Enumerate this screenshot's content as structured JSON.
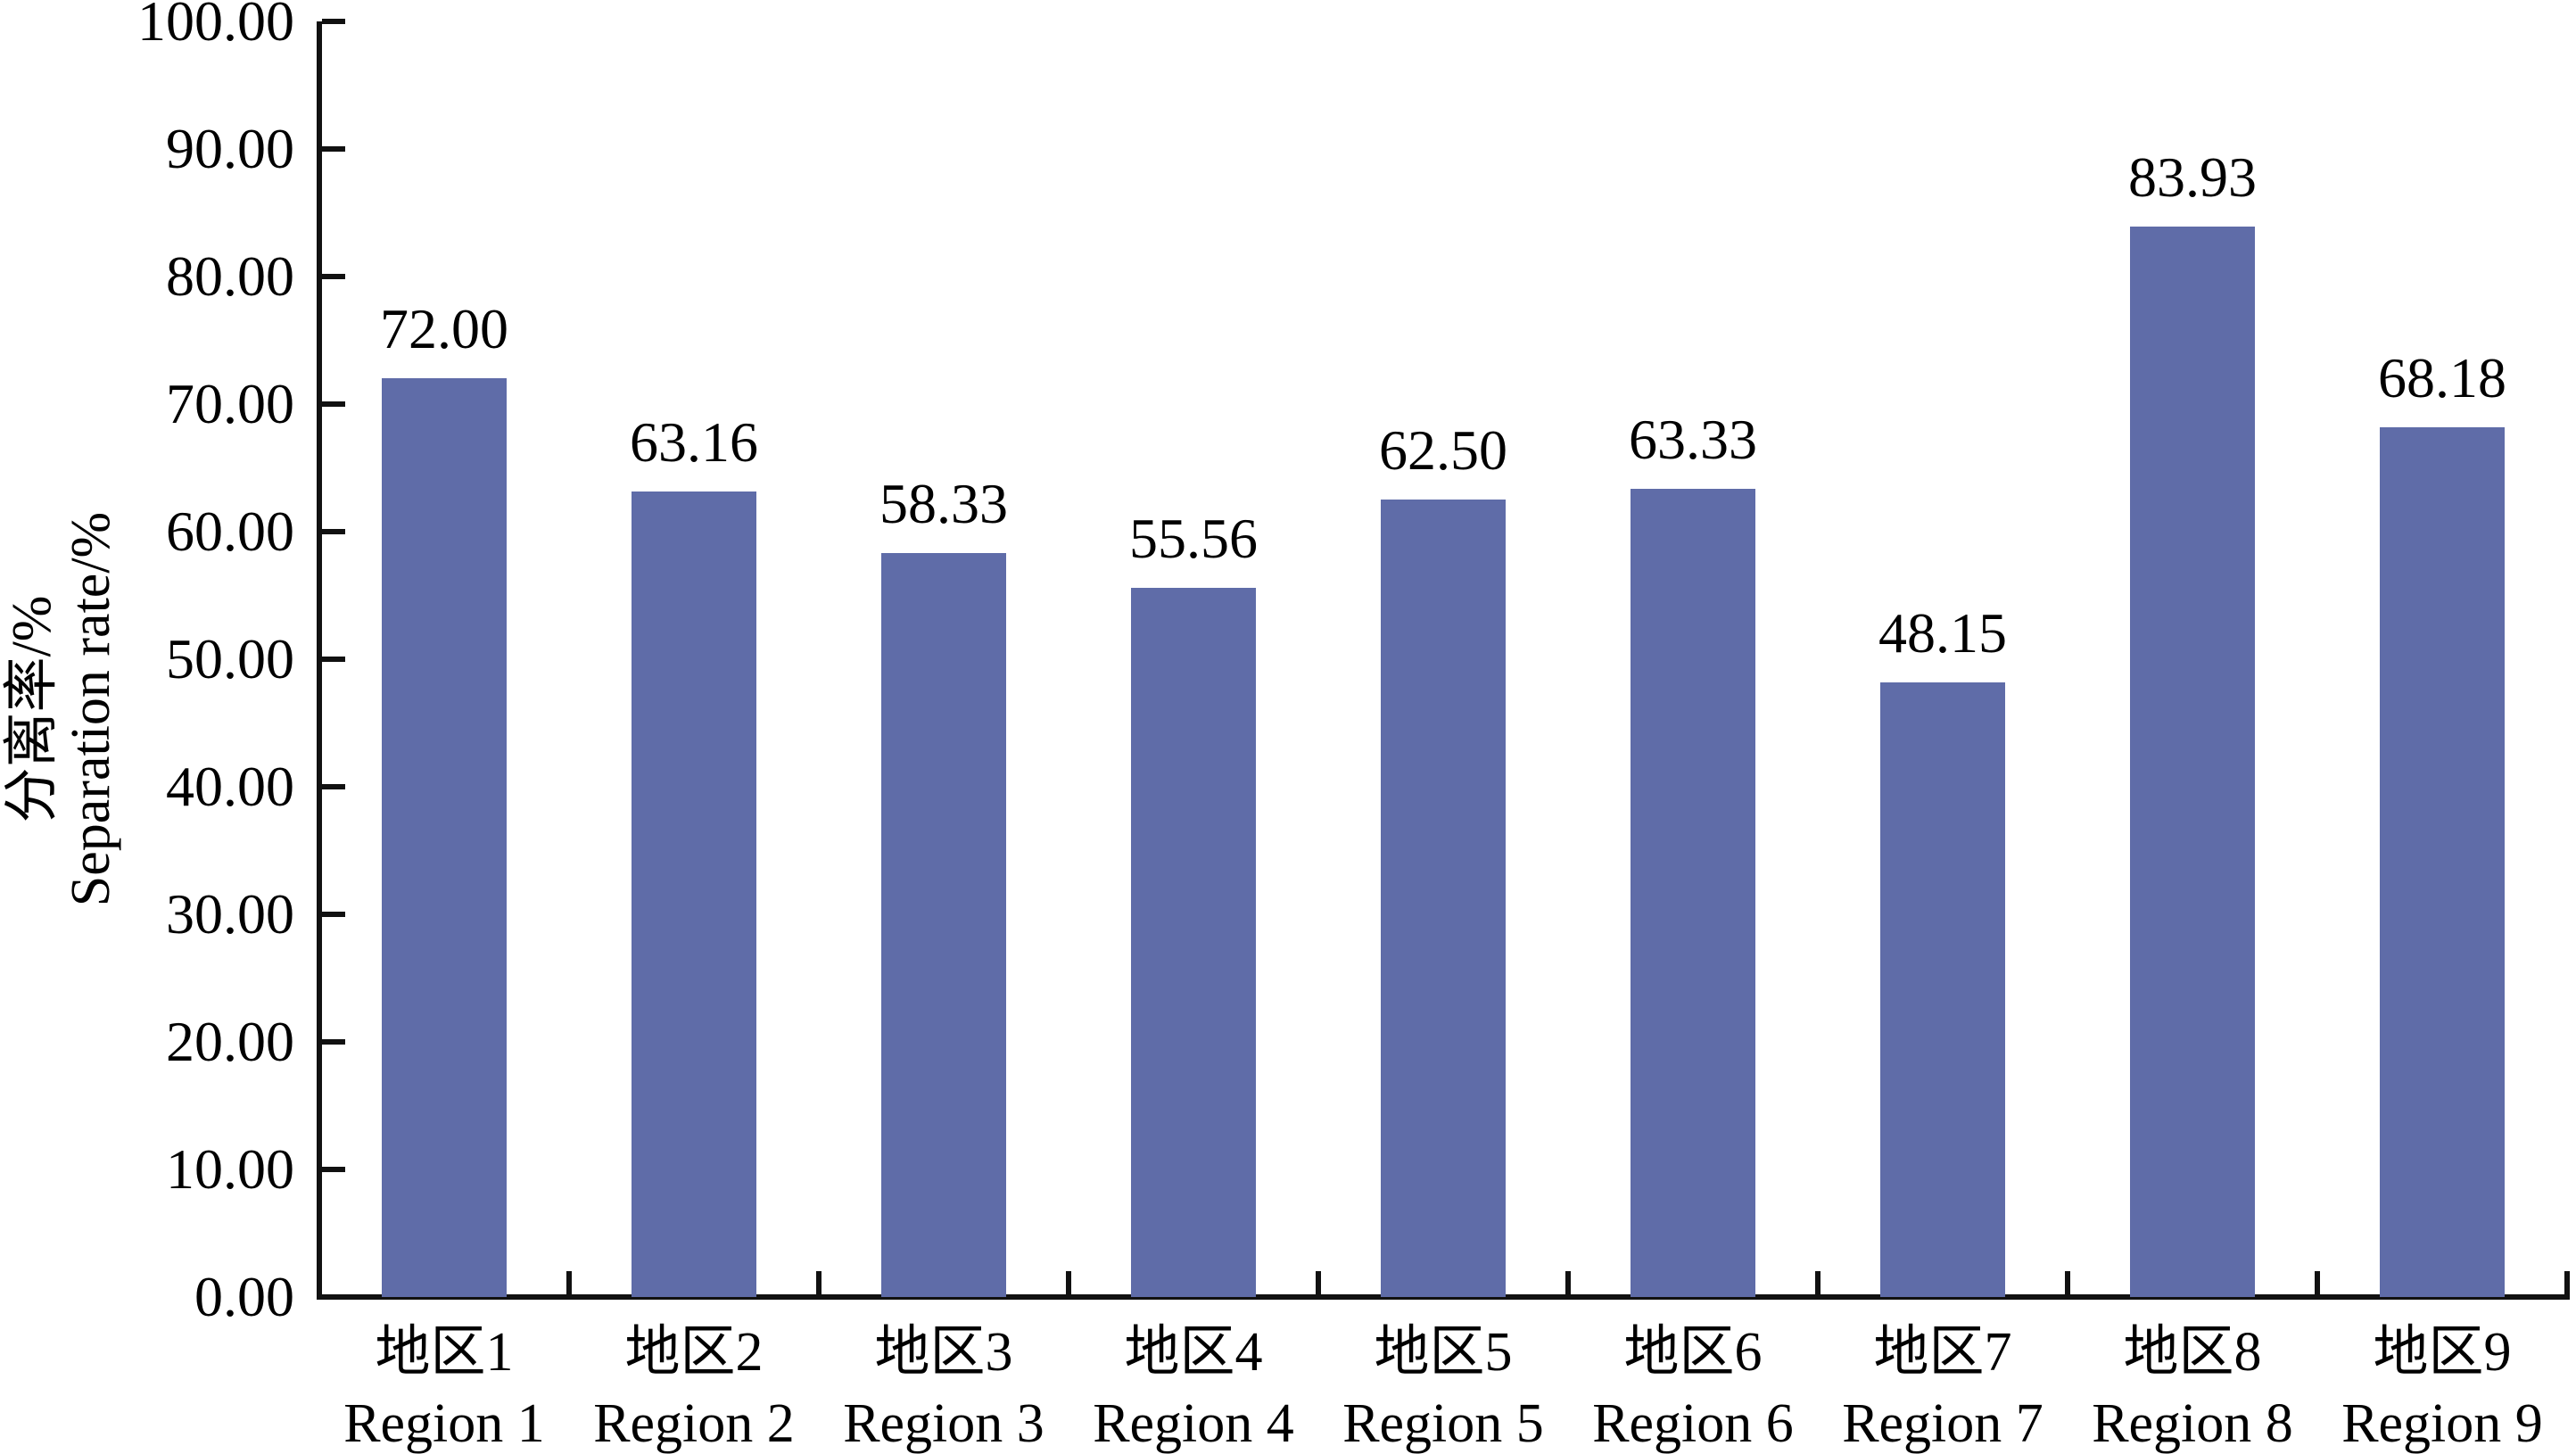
{
  "chart_data": {
    "type": "bar",
    "title": "",
    "ylabel_zh": "分离率/%",
    "ylabel_en": "Separation rate/%",
    "xlabel": "",
    "ylim": [
      0,
      100
    ],
    "y_tick_step": 10,
    "y_tick_labels": [
      "0.00",
      "10.00",
      "20.00",
      "30.00",
      "40.00",
      "50.00",
      "60.00",
      "70.00",
      "80.00",
      "90.00",
      "100.00"
    ],
    "grid": false,
    "legend_position": "none",
    "bar_color": "#5F6CA8",
    "axis_color": "#111111",
    "text_color": "#000000",
    "categories": [
      {
        "label_zh": "地区1",
        "label_en": "Region 1"
      },
      {
        "label_zh": "地区2",
        "label_en": "Region 2"
      },
      {
        "label_zh": "地区3",
        "label_en": "Region 3"
      },
      {
        "label_zh": "地区4",
        "label_en": "Region 4"
      },
      {
        "label_zh": "地区5",
        "label_en": "Region 5"
      },
      {
        "label_zh": "地区6",
        "label_en": "Region 6"
      },
      {
        "label_zh": "地区7",
        "label_en": "Region 7"
      },
      {
        "label_zh": "地区8",
        "label_en": "Region 8"
      },
      {
        "label_zh": "地区9",
        "label_en": "Region 9"
      }
    ],
    "values": [
      72.0,
      63.16,
      58.33,
      55.56,
      62.5,
      63.33,
      48.15,
      83.93,
      68.18
    ],
    "data_labels": [
      "72.00",
      "63.16",
      "58.33",
      "55.56",
      "62.50",
      "63.33",
      "48.15",
      "83.93",
      "68.18"
    ]
  }
}
